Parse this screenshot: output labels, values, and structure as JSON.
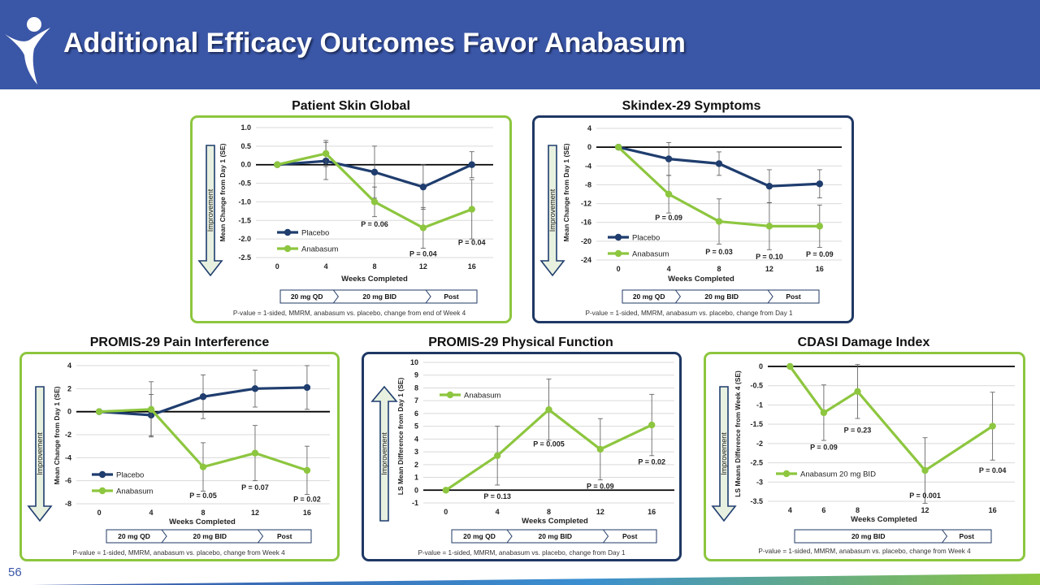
{
  "slide": {
    "title": "Additional Efficacy Outcomes Favor Anabasum",
    "page_number": "56",
    "colors": {
      "header": "#3a56a6",
      "placebo": "#1f3d6e",
      "anabasum": "#8dc63f"
    }
  },
  "chart_data": [
    {
      "type": "line",
      "title": "Patient Skin Global",
      "xlabel": "Weeks Completed",
      "ylabel": "Mean Change from Day 1 (SE)",
      "side_label": "Improvement",
      "side_arrow": "down",
      "x": [
        0,
        4,
        8,
        12,
        16
      ],
      "xticks": [
        "0",
        "4",
        "8",
        "12",
        "16"
      ],
      "ylim": [
        -2.5,
        1.0
      ],
      "yticks": [
        "1.0",
        "0.5",
        "0.0",
        "-0.5",
        "-1.0",
        "-1.5",
        "-2.0",
        "-2.5"
      ],
      "grid": true,
      "reference_line": 0,
      "legend": "bottom-left",
      "series": [
        {
          "name": "Placebo",
          "color": "#1f3d6e",
          "values": [
            0,
            0.1,
            -0.2,
            -0.6,
            0
          ],
          "err": [
            0,
            0.5,
            0.7,
            0.6,
            0.35
          ]
        },
        {
          "name": "Anabasum",
          "color": "#8dc63f",
          "values": [
            0,
            0.3,
            -1.0,
            -1.7,
            -1.2
          ],
          "err": [
            0,
            0.35,
            0.4,
            0.55,
            0.8
          ]
        }
      ],
      "annotations": [
        {
          "x": 8,
          "y": -1.6,
          "text": "P = 0.06"
        },
        {
          "x": 12,
          "y": -2.4,
          "text": "P = 0.04"
        },
        {
          "x": 16,
          "y": -2.1,
          "text": "P = 0.04"
        }
      ],
      "dose_bar": [
        "20 mg QD",
        "20 mg BID",
        "Post"
      ],
      "footnote": "P-value = 1-sided, MMRM,  anabasum vs. placebo, change from end of Week 4"
    },
    {
      "type": "line",
      "title": "Skindex-29 Symptoms",
      "xlabel": "Weeks Completed",
      "ylabel": "Mean Change from Day 1 (SE)",
      "side_label": "Improvement",
      "side_arrow": "down",
      "x": [
        0,
        4,
        8,
        12,
        16
      ],
      "xticks": [
        "0",
        "4",
        "8",
        "12",
        "16"
      ],
      "ylim": [
        -24,
        4
      ],
      "yticks": [
        "4",
        "0",
        "-4",
        "-8",
        "-12",
        "-16",
        "-20",
        "-24"
      ],
      "grid": true,
      "reference_line": 0,
      "legend": "bottom-left",
      "series": [
        {
          "name": "Placebo",
          "color": "#1f3d6e",
          "values": [
            0,
            -2.5,
            -3.5,
            -8.3,
            -7.8
          ],
          "err": [
            0,
            3.5,
            2.5,
            3.5,
            3.0
          ]
        },
        {
          "name": "Anabasum",
          "color": "#8dc63f",
          "values": [
            0,
            -10,
            -15.8,
            -16.8,
            -16.8
          ],
          "err": [
            0,
            4.0,
            4.8,
            5.0,
            4.5
          ]
        }
      ],
      "annotations": [
        {
          "x": 4,
          "y": -15,
          "text": "P = 0.09"
        },
        {
          "x": 8,
          "y": -22.3,
          "text": "P = 0.03"
        },
        {
          "x": 12,
          "y": -23.3,
          "text": "P = 0.10"
        },
        {
          "x": 16,
          "y": -22.8,
          "text": "P = 0.09"
        }
      ],
      "dose_bar": [
        "20 mg QD",
        "20 mg BID",
        "Post"
      ],
      "footnote": "P-value = 1-sided, MMRM,  anabasum vs. placebo, change from Day 1"
    },
    {
      "type": "line",
      "title": "PROMIS-29 Pain Interference",
      "xlabel": "Weeks Completed",
      "ylabel": "Mean Change from Day 1 (SE)",
      "side_label": "Improvement",
      "side_arrow": "down",
      "x": [
        0,
        4,
        8,
        12,
        16
      ],
      "xticks": [
        "0",
        "4",
        "8",
        "12",
        "16"
      ],
      "ylim": [
        -8,
        4
      ],
      "yticks": [
        "4",
        "2",
        "0",
        "-2",
        "-4",
        "-6",
        "-8"
      ],
      "grid": true,
      "reference_line": 0,
      "legend": "bottom-left",
      "series": [
        {
          "name": "Placebo",
          "color": "#1f3d6e",
          "values": [
            0,
            -0.3,
            1.3,
            2.0,
            2.1
          ],
          "err": [
            0,
            1.8,
            1.9,
            1.6,
            1.9
          ]
        },
        {
          "name": "Anabasum",
          "color": "#8dc63f",
          "values": [
            0,
            0.2,
            -4.8,
            -3.6,
            -5.1
          ],
          "err": [
            0,
            2.4,
            2.1,
            2.4,
            2.1
          ]
        }
      ],
      "annotations": [
        {
          "x": 8,
          "y": -7.3,
          "text": "P = 0.05"
        },
        {
          "x": 12,
          "y": -6.6,
          "text": "P = 0.07"
        },
        {
          "x": 16,
          "y": -7.6,
          "text": "P = 0.02"
        }
      ],
      "dose_bar": [
        "20 mg QD",
        "20 mg BID",
        "Post"
      ],
      "footnote": "P-value = 1-sided, MMRM,  anabasum vs. placebo, change from Week 4"
    },
    {
      "type": "line",
      "title": "PROMIS-29 Physical Function",
      "xlabel": "Weeks Completed",
      "ylabel": "LS Mean Difference from Day 1 (SE)",
      "side_label": "Improvement",
      "side_arrow": "up",
      "x": [
        0,
        4,
        8,
        12,
        16
      ],
      "xticks": [
        "0",
        "4",
        "8",
        "12",
        "16"
      ],
      "ylim": [
        -1,
        10
      ],
      "yticks": [
        "10",
        "9",
        "8",
        "7",
        "6",
        "5",
        "4",
        "3",
        "2",
        "1",
        "0",
        "-1"
      ],
      "grid": true,
      "reference_line": 0,
      "legend": "top-left",
      "series": [
        {
          "name": "Anabasum",
          "color": "#8dc63f",
          "values": [
            0,
            2.7,
            6.3,
            3.2,
            5.1
          ],
          "err": [
            0,
            2.3,
            2.4,
            2.4,
            2.4
          ]
        }
      ],
      "annotations": [
        {
          "x": 4,
          "y": -0.5,
          "text": "P = 0.13"
        },
        {
          "x": 8,
          "y": 3.6,
          "text": "P = 0.005"
        },
        {
          "x": 12,
          "y": 0.3,
          "text": "P = 0.09"
        },
        {
          "x": 16,
          "y": 2.2,
          "text": "P = 0.02"
        }
      ],
      "dose_bar": [
        "20 mg QD",
        "20 mg BID",
        "Post"
      ],
      "footnote": "P-value = 1-sided, MMRM,  anabasum vs. placebo, change from Day 1"
    },
    {
      "type": "line",
      "title": "CDASI Damage Index",
      "xlabel": "Weeks Completed",
      "ylabel": "LS Means Difference from Week 4 (SE)",
      "side_label": "Improvement",
      "side_arrow": "down",
      "x": [
        4,
        6,
        8,
        12,
        16
      ],
      "xticks": [
        "4",
        "6",
        "8",
        "12",
        "16"
      ],
      "ylim": [
        -3.5,
        0
      ],
      "yticks": [
        "0",
        "-0.5",
        "-1",
        "-1.5",
        "-2",
        "-2.5",
        "-3",
        "-3.5"
      ],
      "grid": true,
      "reference_line": 0,
      "legend": "bottom-left",
      "series": [
        {
          "name": "Anabasum 20 mg BID",
          "color": "#8dc63f",
          "values": [
            0,
            -1.2,
            -0.65,
            -2.7,
            -1.55
          ],
          "err": [
            0,
            0.72,
            0.7,
            0.85,
            0.88
          ]
        }
      ],
      "annotations": [
        {
          "x": 6,
          "y": -2.1,
          "text": "P = 0.09"
        },
        {
          "x": 8,
          "y": -1.65,
          "text": "P = 0.23"
        },
        {
          "x": 12,
          "y": -3.35,
          "text": "P = 0.001"
        },
        {
          "x": 16,
          "y": -2.7,
          "text": "P = 0.04"
        }
      ],
      "dose_bar": [
        "20 mg BID",
        "Post"
      ],
      "footnote": "P-value = 1-sided, MMRM,  anabasum vs. placebo, change from Week 4"
    }
  ]
}
